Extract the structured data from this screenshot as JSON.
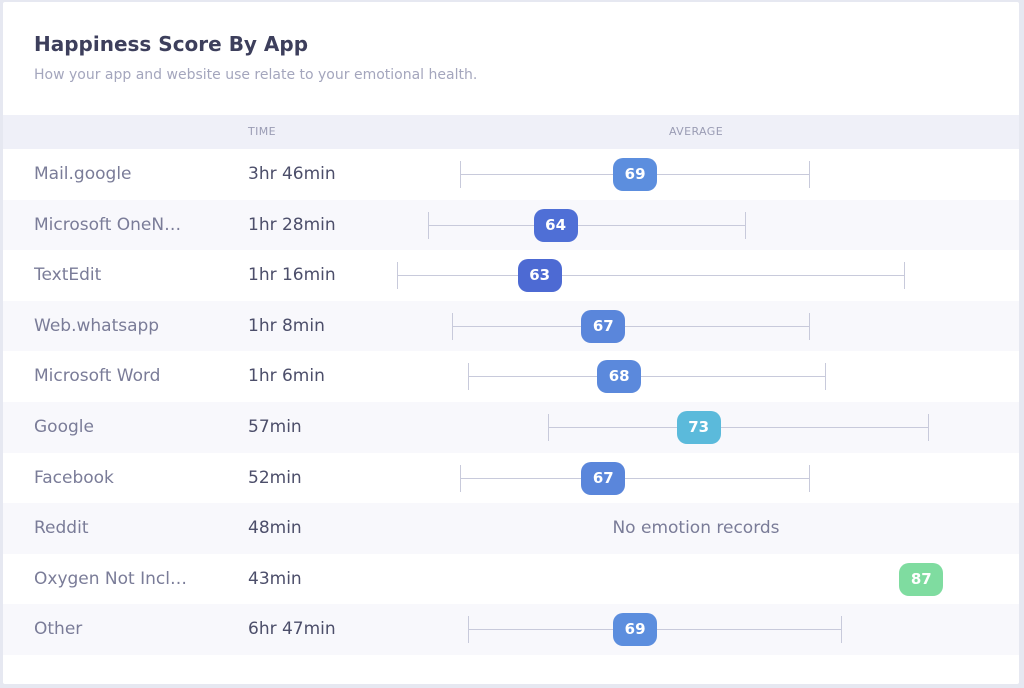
{
  "header": {
    "title": "Happiness Score By App",
    "subtitle": "How your app and website use relate to your emotional health."
  },
  "columns": {
    "time": "TIME",
    "average": "AVERAGE"
  },
  "colors": {
    "score_63": "#4d6ad3",
    "score_64": "#4f6fd6",
    "score_67": "#5a86db",
    "score_68": "#5b89dc",
    "score_69": "#5c8ede",
    "score_73": "#5bbadb",
    "score_87": "#7fdca0",
    "range_line": "#c8cadb",
    "header_band": "#eff0f8"
  },
  "scale": {
    "min": 50,
    "max": 90
  },
  "rows": [
    {
      "app": "Mail.google",
      "time": "3hr 46min",
      "average": 69,
      "label": "69",
      "low": 58,
      "high": 80,
      "color": "#5c8ede"
    },
    {
      "app": "Microsoft OneN…",
      "time": "1hr 28min",
      "average": 64,
      "label": "64",
      "low": 56,
      "high": 76,
      "color": "#4f6fd6"
    },
    {
      "app": "TextEdit",
      "time": "1hr 16min",
      "average": 63,
      "label": "63",
      "low": 54,
      "high": 86,
      "color": "#4d6ad3"
    },
    {
      "app": "Web.whatsapp",
      "time": "1hr 8min",
      "average": 67,
      "label": "67",
      "low": 57.5,
      "high": 80,
      "color": "#5a86db"
    },
    {
      "app": "Microsoft Word",
      "time": "1hr 6min",
      "average": 68,
      "label": "68",
      "low": 58.5,
      "high": 81,
      "color": "#5b89dc"
    },
    {
      "app": "Google",
      "time": "57min",
      "average": 73,
      "label": "73",
      "low": 63.5,
      "high": 87.5,
      "color": "#5bbadb"
    },
    {
      "app": "Facebook",
      "time": "52min",
      "average": 67,
      "label": "67",
      "low": 58,
      "high": 80,
      "color": "#5a86db"
    },
    {
      "app": "Reddit",
      "time": "48min",
      "average": null,
      "label": "",
      "low": null,
      "high": null,
      "color": "",
      "note": "No emotion records"
    },
    {
      "app": "Oxygen Not Incl…",
      "time": "43min",
      "average": 87,
      "label": "87",
      "low": null,
      "high": null,
      "color": "#7fdca0"
    },
    {
      "app": "Other",
      "time": "6hr 47min",
      "average": 69,
      "label": "69",
      "low": 58.5,
      "high": 82,
      "color": "#5c8ede"
    }
  ]
}
